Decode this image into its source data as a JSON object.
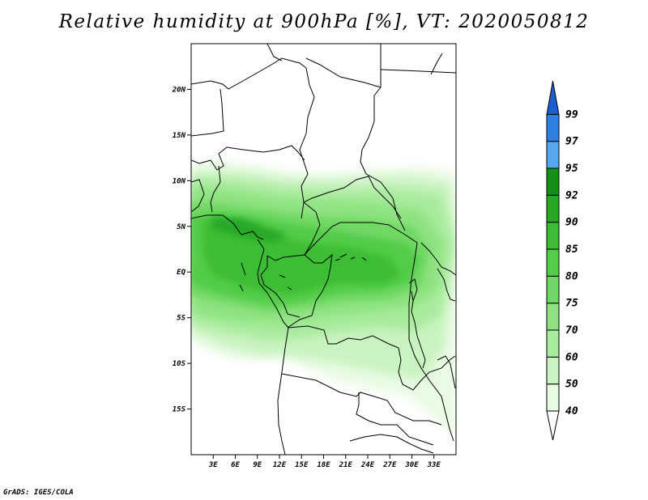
{
  "title": "Relative humidity at 900hPa [%], VT: 2020050812",
  "footer": "GrADS: IGES/COLA",
  "map": {
    "lon_range": [
      0,
      36
    ],
    "lat_range": [
      -20,
      25
    ],
    "lat_ticks": [
      {
        "value": 20,
        "label": "20N"
      },
      {
        "value": 15,
        "label": "15N"
      },
      {
        "value": 10,
        "label": "10N"
      },
      {
        "value": 5,
        "label": "5N"
      },
      {
        "value": 0,
        "label": "EQ"
      },
      {
        "value": -5,
        "label": "5S"
      },
      {
        "value": -10,
        "label": "10S"
      },
      {
        "value": -15,
        "label": "15S"
      }
    ],
    "lon_ticks": [
      {
        "value": 3,
        "label": "3E"
      },
      {
        "value": 6,
        "label": "6E"
      },
      {
        "value": 9,
        "label": "9E"
      },
      {
        "value": 12,
        "label": "12E"
      },
      {
        "value": 15,
        "label": "15E"
      },
      {
        "value": 18,
        "label": "18E"
      },
      {
        "value": 21,
        "label": "21E"
      },
      {
        "value": 24,
        "label": "24E"
      },
      {
        "value": 27,
        "label": "27E"
      },
      {
        "value": 30,
        "label": "30E"
      },
      {
        "value": 33,
        "label": "33E"
      }
    ]
  },
  "colorbar": {
    "units": "%",
    "levels": [
      {
        "label": "40",
        "color": "#e8fbe3"
      },
      {
        "label": "50",
        "color": "#c9f3c0"
      },
      {
        "label": "60",
        "color": "#a9eb9e"
      },
      {
        "label": "70",
        "color": "#8de27f"
      },
      {
        "label": "75",
        "color": "#6fd863"
      },
      {
        "label": "80",
        "color": "#53cc48"
      },
      {
        "label": "85",
        "color": "#3cbd35"
      },
      {
        "label": "90",
        "color": "#27a925"
      },
      {
        "label": "92",
        "color": "#149014"
      },
      {
        "label": "95",
        "color": "#55a7ee"
      },
      {
        "label": "97",
        "color": "#2f80e3"
      },
      {
        "label": "99",
        "color": "#1a5ed0"
      }
    ],
    "below_color": "#ffffff"
  }
}
